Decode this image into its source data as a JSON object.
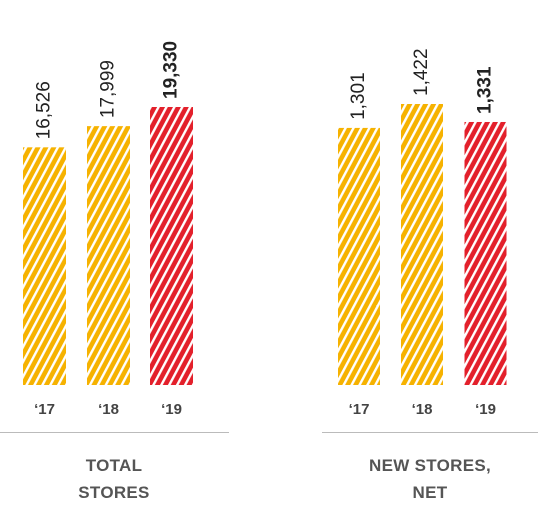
{
  "chart_data": [
    {
      "type": "bar",
      "title": "TOTAL STORES",
      "categories": [
        "‘17",
        "‘18",
        "‘19"
      ],
      "values": [
        16526,
        17999,
        19330
      ],
      "value_labels": [
        "16,526",
        "17,999",
        "19,330"
      ],
      "colors": [
        "#f6b200",
        "#f6b200",
        "#e3202b"
      ]
    },
    {
      "type": "bar",
      "title": "NEW STORES, NET",
      "categories": [
        "‘17",
        "‘18",
        "‘19"
      ],
      "values": [
        1301,
        1422,
        1331
      ],
      "value_labels": [
        "1,301",
        "1,422",
        "1,331"
      ],
      "colors": [
        "#f6b200",
        "#f6b200",
        "#e3202b"
      ]
    }
  ]
}
